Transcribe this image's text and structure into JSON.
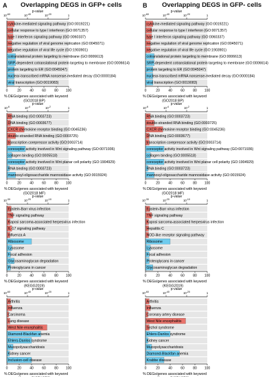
{
  "panels": [
    {
      "letter": "A",
      "title": "Overlapping DEGS in GFP+ cells"
    },
    {
      "letter": "B",
      "title": "Overlapping DEGS in GFP- cells"
    }
  ],
  "colors": {
    "up": "#e8736b",
    "down": "#6ecbee",
    "track": "#e6e6e6",
    "axis": "#222222"
  },
  "chart_data": [
    {
      "type": "bar",
      "panel": "A",
      "library": "GO2018 BP",
      "top_axis_label": "p-value",
      "top_ticks": [
        "10<sup>-60</sup>",
        "10<sup>-40</sup>",
        "10<sup>-20</sup>",
        "1"
      ],
      "xlabel": "% DEGs/genes associated with keyword",
      "xsub": "(GO2018 BP)",
      "xticks": [
        0,
        20,
        40,
        60,
        80,
        100
      ],
      "xlim": [
        0,
        100
      ],
      "bars": [
        {
          "term": "cytokine-mediated signaling pathway (GO:0019221)",
          "value": 12,
          "direction": "up"
        },
        {
          "term": "cellular response to type I interferon (GO:0071357)",
          "value": 10,
          "direction": "up"
        },
        {
          "term": "type I interferon signaling pathway (GO:0060337)",
          "value": 10,
          "direction": "up"
        },
        {
          "term": "negative regulation of viral genome replication (GO:0045071)",
          "value": 8,
          "direction": "up"
        },
        {
          "term": "negative regulation of viral life cycle (GO:1903901)",
          "value": 8,
          "direction": "up"
        },
        {
          "term": "cotranslational protein targeting to membrane (GO:0006613)",
          "value": 14,
          "direction": "down"
        },
        {
          "term": "SRP-dependent cotranslational protein targeting to membrane (GO:0006614)",
          "value": 14,
          "direction": "down"
        },
        {
          "term": "protein targeting to ER (GO:0045047)",
          "value": 12,
          "direction": "down"
        },
        {
          "term": "nuclear-transcribed mRNA nonsense-mediated decay (GO:0000184)",
          "value": 12,
          "direction": "down"
        },
        {
          "term": "viral transcription (GO:0019083)",
          "value": 12,
          "direction": "down"
        }
      ]
    },
    {
      "type": "bar",
      "panel": "B",
      "library": "GO2018 BP",
      "top_axis_label": "p-value",
      "top_ticks": [
        "10<sup>-60</sup>",
        "10<sup>-40</sup>",
        "10<sup>-20</sup>",
        "1"
      ],
      "xlabel": "% DEGs/genes associated with keyword",
      "xsub": "(GO2018 BP)",
      "xticks": [
        0,
        20,
        40,
        60,
        80,
        100
      ],
      "xlim": [
        0,
        100
      ],
      "bars": [
        {
          "term": "cytokine-mediated signaling pathway (GO:0019221)",
          "value": 12,
          "direction": "up"
        },
        {
          "term": "cellular response to type I interferon (GO:0071357)",
          "value": 10,
          "direction": "up"
        },
        {
          "term": "type I interferon signaling pathway (GO:0060337)",
          "value": 10,
          "direction": "up"
        },
        {
          "term": "negative regulation of viral genome replication (GO:0045071)",
          "value": 8,
          "direction": "up"
        },
        {
          "term": "negative regulation of viral life cycle (GO:1903901)",
          "value": 8,
          "direction": "up"
        },
        {
          "term": "cotranslational protein targeting to membrane (GO:0006613)",
          "value": 14,
          "direction": "down"
        },
        {
          "term": "SRP-dependent cotranslational protein targeting to membrane (GO:0006614)",
          "value": 14,
          "direction": "down"
        },
        {
          "term": "protein targeting to ER (GO:0045047)",
          "value": 12,
          "direction": "down"
        },
        {
          "term": "nuclear-transcribed mRNA nonsense-mediated decay (GO:0000184)",
          "value": 12,
          "direction": "down"
        },
        {
          "term": "viral transcription (GO:0019083)",
          "value": 12,
          "direction": "down"
        }
      ]
    },
    {
      "type": "bar",
      "panel": "A",
      "library": "GO2018 MF",
      "top_axis_label": "p-value",
      "top_ticks": [
        "10<sup>-6</sup>",
        "10<sup>-4</sup>",
        "10<sup>-2</sup>",
        "1"
      ],
      "xlabel": "% DEGs/genes associated with keyword",
      "xsub": "(GO2018 MF)",
      "xticks": [
        0,
        20,
        40,
        60,
        80,
        100
      ],
      "xlim": [
        0,
        100
      ],
      "bars": [
        {
          "term": "RNA binding (GO:0003723)",
          "value": 8,
          "direction": "up"
        },
        {
          "term": "DNA binding (GO:0003677)",
          "value": 6,
          "direction": "up"
        },
        {
          "term": "CXCR chemokine receptor binding (GO:0045236)",
          "value": 28,
          "direction": "up"
        },
        {
          "term": "double-stranded RNA binding (GO:0003725)",
          "value": 14,
          "direction": "up"
        },
        {
          "term": "transcription corepressor activity (GO:0003714)",
          "value": 6,
          "direction": "up"
        },
        {
          "term": "coreceptor activity involved in Wnt signaling pathway (GO:0071936)",
          "value": 30,
          "direction": "down"
        },
        {
          "term": "collagen binding (GO:0005518)",
          "value": 8,
          "direction": "down"
        },
        {
          "term": "coreceptor activity involved in Wnt planar cell polarity (GO:1904929)",
          "value": 30,
          "direction": "down"
        },
        {
          "term": "RNA binding (GO:0003723)",
          "value": 4,
          "direction": "down"
        },
        {
          "term": "mannosyl-oligosaccharide mannosidase activity (GO:0015924)",
          "value": 14,
          "direction": "down"
        }
      ]
    },
    {
      "type": "bar",
      "panel": "B",
      "library": "GO2018 MF",
      "top_axis_label": "p-value",
      "top_ticks": [
        "10<sup>-6</sup>",
        "10<sup>-4</sup>",
        "10<sup>-2</sup>",
        "1"
      ],
      "xlabel": "% DEGs/genes associated with keyword",
      "xsub": "(GO2018 MF)",
      "xticks": [
        0,
        20,
        40,
        60,
        80,
        100
      ],
      "xlim": [
        0,
        100
      ],
      "bars": [
        {
          "term": "RNA binding (GO:0003723)",
          "value": 8,
          "direction": "up"
        },
        {
          "term": "double-stranded RNA binding (GO:0003725)",
          "value": 14,
          "direction": "up"
        },
        {
          "term": "CXCR chemokine receptor binding (GO:0045236)",
          "value": 28,
          "direction": "up"
        },
        {
          "term": "DNA binding (GO:0003677)",
          "value": 6,
          "direction": "up"
        },
        {
          "term": "transcription corepressor activity (GO:0003714)",
          "value": 6,
          "direction": "up"
        },
        {
          "term": "coreceptor activity involved in Wnt signaling pathway (GO:0071936)",
          "value": 30,
          "direction": "down"
        },
        {
          "term": "collagen binding (GO:0005518)",
          "value": 8,
          "direction": "down"
        },
        {
          "term": "coreceptor activity involved in Wnt planar cell polarity (GO:1904929)",
          "value": 30,
          "direction": "down"
        },
        {
          "term": "RNA binding (GO:0003723)",
          "value": 4,
          "direction": "down"
        },
        {
          "term": "mannosyl-oligosaccharide mannosidase activity (GO:0015924)",
          "value": 14,
          "direction": "down"
        }
      ]
    },
    {
      "type": "bar",
      "panel": "A",
      "library": "KEGG2019",
      "top_axis_label": "p-value",
      "top_ticks": [
        "10<sup>-30</sup>",
        "10<sup>-20</sup>",
        "10<sup>-10</sup>",
        "1"
      ],
      "xlabel": "% DEGs/genes associated with keyword",
      "xsub": "(KEGG2019)",
      "xticks": [
        0,
        20,
        40,
        60,
        80,
        100
      ],
      "xlim": [
        0,
        100
      ],
      "bars": [
        {
          "term": "Epstein-Barr virus infection",
          "value": 7,
          "direction": "up"
        },
        {
          "term": "TNF signaling pathway",
          "value": 10,
          "direction": "up"
        },
        {
          "term": "Kaposi sarcoma-associated herpesvirus infection",
          "value": 5,
          "direction": "up"
        },
        {
          "term": "IL-17 signaling pathway",
          "value": 8,
          "direction": "up"
        },
        {
          "term": "Influenza A",
          "value": 5,
          "direction": "up"
        },
        {
          "term": "Ribosome",
          "value": 40,
          "direction": "down"
        },
        {
          "term": "Lysosome",
          "value": 8,
          "direction": "down"
        },
        {
          "term": "Focal adhesion",
          "value": 6,
          "direction": "down"
        },
        {
          "term": "Glycosaminoglycan degradation",
          "value": 12,
          "direction": "down"
        },
        {
          "term": "Proteoglycans in cancer",
          "value": 6,
          "direction": "down"
        }
      ]
    },
    {
      "type": "bar",
      "panel": "B",
      "library": "KEGG2019",
      "top_axis_label": "p-value",
      "top_ticks": [
        "10<sup>-30</sup>",
        "10<sup>-20</sup>",
        "10<sup>-10</sup>",
        "1"
      ],
      "xlabel": "% DEGs/genes associated with keyword",
      "xsub": "(KEGG2019)",
      "xticks": [
        0,
        20,
        40,
        60,
        80,
        100
      ],
      "xlim": [
        0,
        100
      ],
      "bars": [
        {
          "term": "Epstein-Barr virus infection",
          "value": 7,
          "direction": "up"
        },
        {
          "term": "TNF signaling pathway",
          "value": 10,
          "direction": "up"
        },
        {
          "term": "Kaposi sarcoma-associated herpesvirus infection",
          "value": 5,
          "direction": "up"
        },
        {
          "term": "Hepatitis C",
          "value": 5,
          "direction": "up"
        },
        {
          "term": "NOD-like receptor signaling pathway",
          "value": 5,
          "direction": "up"
        },
        {
          "term": "Ribosome",
          "value": 40,
          "direction": "down"
        },
        {
          "term": "Lysosome",
          "value": 8,
          "direction": "down"
        },
        {
          "term": "Focal adhesion",
          "value": 6,
          "direction": "down"
        },
        {
          "term": "Proteoglycans in cancer",
          "value": 6,
          "direction": "down"
        },
        {
          "term": "Glycosaminoglycan degradation",
          "value": 12,
          "direction": "down"
        }
      ]
    },
    {
      "type": "bar",
      "panel": "A",
      "library": "Jensen DISEASES",
      "top_axis_label": "p-value",
      "top_ticks": [
        "10<sup>-60</sup>",
        "10<sup>-40</sup>",
        "10<sup>-20</sup>",
        "1"
      ],
      "xlabel": "% DEGs/genes associated with keyword",
      "xsub": "(Jensen DISEASES)",
      "xticks": [
        0,
        20,
        40,
        60,
        80,
        100
      ],
      "xlim": [
        0,
        100
      ],
      "bars": [
        {
          "term": "Arthritis",
          "value": 6,
          "direction": "up"
        },
        {
          "term": "Influenza",
          "value": 8,
          "direction": "up"
        },
        {
          "term": "Carcinoma",
          "value": 3,
          "direction": "up"
        },
        {
          "term": "Lung disease",
          "value": 5,
          "direction": "up"
        },
        {
          "term": "West Nile encephalitis",
          "value": 65,
          "direction": "up"
        },
        {
          "term": "Diamond-Blackfan anemia",
          "value": 55,
          "direction": "down"
        },
        {
          "term": "Ehlers-Danlos syndrome",
          "value": 40,
          "direction": "down"
        },
        {
          "term": "Mucopolysaccharidosis",
          "value": 10,
          "direction": "down"
        },
        {
          "term": "Kidney cancer",
          "value": 4,
          "direction": "down"
        },
        {
          "term": "Inclusion-cell disease",
          "value": 40,
          "direction": "down"
        }
      ]
    },
    {
      "type": "bar",
      "panel": "B",
      "library": "Jensen DISEASES",
      "top_axis_label": "p-value",
      "top_ticks": [
        "10<sup>-60</sup>",
        "10<sup>-40</sup>",
        "10<sup>-20</sup>",
        "1"
      ],
      "xlabel": "% DEGs/genes associated with keyword",
      "xsub": "(Jensen DISEASES)",
      "xticks": [
        0,
        20,
        40,
        60,
        80,
        100
      ],
      "xlim": [
        0,
        100
      ],
      "bars": [
        {
          "term": "Arthritis",
          "value": 6,
          "direction": "up"
        },
        {
          "term": "Influenza",
          "value": 8,
          "direction": "up"
        },
        {
          "term": "Coronary artery disease",
          "value": 4,
          "direction": "up"
        },
        {
          "term": "West Nile encephalitis",
          "value": 65,
          "direction": "up"
        },
        {
          "term": "Sezhol syndrome",
          "value": 6,
          "direction": "up"
        },
        {
          "term": "Ehlers-Danlos syndrome",
          "value": 40,
          "direction": "down"
        },
        {
          "term": "Kidney cancer",
          "value": 4,
          "direction": "down"
        },
        {
          "term": "Mucopolysaccharidosis",
          "value": 10,
          "direction": "down"
        },
        {
          "term": "Diamond-Blackfan anemia",
          "value": 55,
          "direction": "down"
        },
        {
          "term": "Krabbe disease",
          "value": 30,
          "direction": "down"
        }
      ]
    }
  ]
}
